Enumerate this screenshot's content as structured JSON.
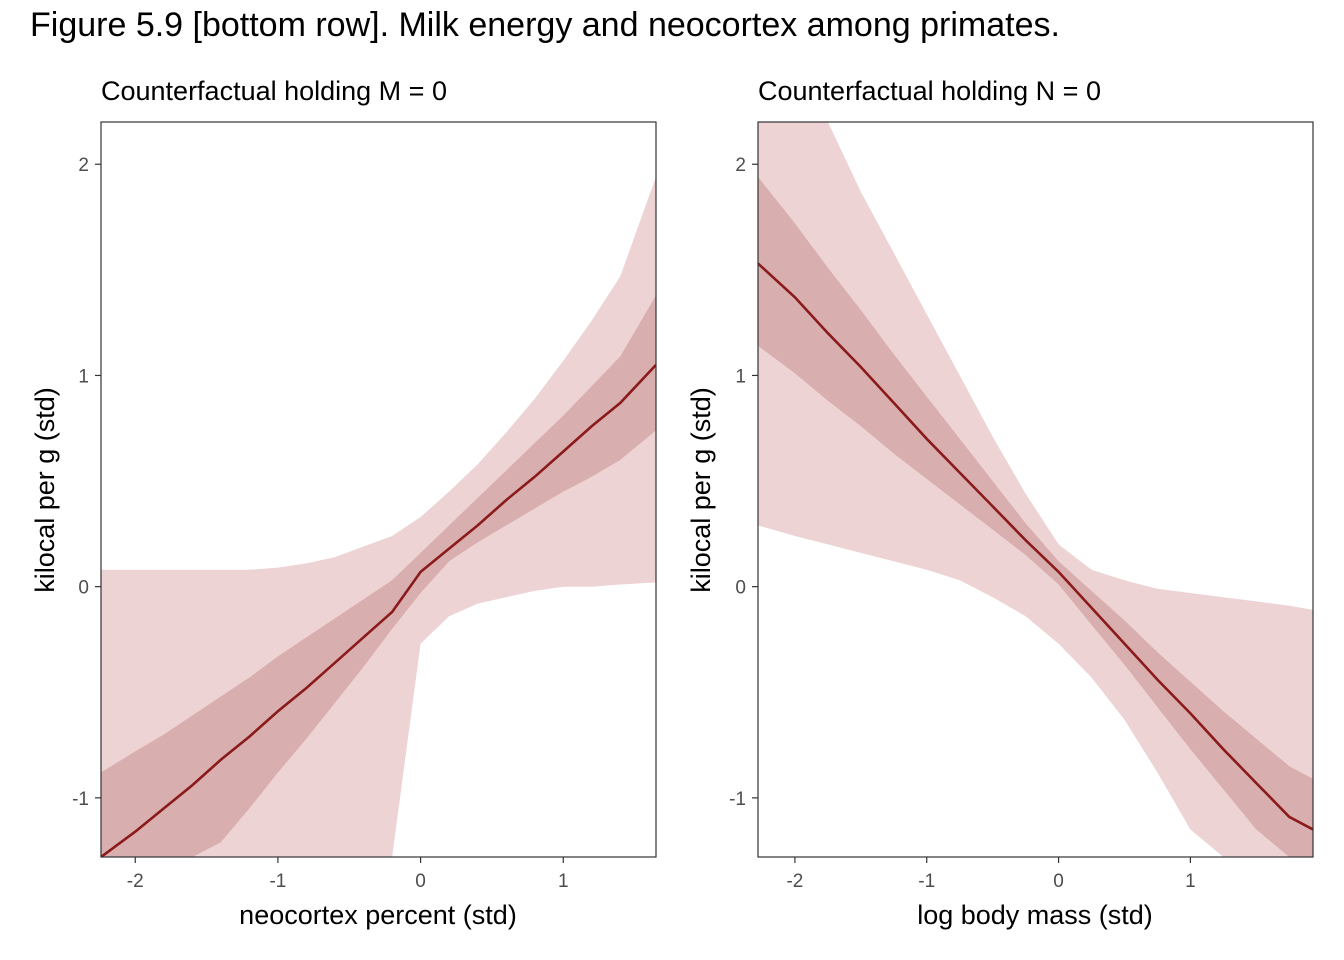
{
  "figure": {
    "title": "Figure 5.9 [bottom row]. Milk energy and neocortex among primates.",
    "colors": {
      "band_outer": "#edd3d4",
      "band_inner": "#d9aeae",
      "line": "#8b1a1a",
      "frame": "#333333",
      "tick_text": "#4d4d4d"
    }
  },
  "chart_data": [
    {
      "type": "line",
      "title": "Counterfactual holding M = 0",
      "xlabel": "neocortex percent (std)",
      "ylabel": "kilocal per g (std)",
      "xlim": [
        -2.24,
        1.65
      ],
      "ylim": [
        -1.28,
        2.2
      ],
      "xticks": [
        -2,
        -1,
        0,
        1
      ],
      "xtick_labels": [
        "-2",
        "-1",
        "0",
        "1"
      ],
      "yticks": [
        -1,
        0,
        1,
        2
      ],
      "ytick_labels": [
        "-1",
        "0",
        "1",
        "2"
      ],
      "grid": false,
      "series": [
        {
          "x": [
            -2.24,
            -2.0,
            -1.8,
            -1.6,
            -1.4,
            -1.2,
            -1.0,
            -0.8,
            -0.6,
            -0.4,
            -0.2,
            0.0,
            0.2,
            0.4,
            0.6,
            0.8,
            1.0,
            1.2,
            1.4,
            1.65
          ],
          "mean": [
            -1.28,
            -1.16,
            -1.05,
            -0.94,
            -0.82,
            -0.71,
            -0.59,
            -0.48,
            -0.36,
            -0.24,
            -0.12,
            0.07,
            0.18,
            0.29,
            0.41,
            0.52,
            0.64,
            0.76,
            0.87,
            1.05
          ],
          "inner_lower": [
            -1.28,
            -1.28,
            -1.28,
            -1.28,
            -1.21,
            -1.05,
            -0.88,
            -0.72,
            -0.55,
            -0.38,
            -0.2,
            -0.03,
            0.12,
            0.21,
            0.29,
            0.37,
            0.45,
            0.52,
            0.6,
            0.74
          ],
          "inner_upper": [
            -0.88,
            -0.78,
            -0.7,
            -0.61,
            -0.52,
            -0.43,
            -0.33,
            -0.24,
            -0.15,
            -0.06,
            0.03,
            0.16,
            0.29,
            0.42,
            0.55,
            0.68,
            0.81,
            0.95,
            1.09,
            1.38
          ],
          "outer_lower": [
            -1.28,
            -1.28,
            -1.28,
            -1.28,
            -1.28,
            -1.28,
            -1.28,
            -1.28,
            -1.28,
            -1.28,
            -1.28,
            -0.27,
            -0.14,
            -0.08,
            -0.05,
            -0.02,
            0.0,
            0.0,
            0.01,
            0.02
          ],
          "outer_upper": [
            0.08,
            0.08,
            0.08,
            0.08,
            0.08,
            0.08,
            0.09,
            0.11,
            0.14,
            0.19,
            0.24,
            0.33,
            0.45,
            0.58,
            0.73,
            0.89,
            1.07,
            1.26,
            1.47,
            1.94
          ]
        }
      ]
    },
    {
      "type": "line",
      "title": "Counterfactual holding N = 0",
      "xlabel": "log body mass (std)",
      "ylabel": "kilocal per g (std)",
      "xlim": [
        -2.28,
        1.93
      ],
      "ylim": [
        -1.28,
        2.2
      ],
      "xticks": [
        -2,
        -1,
        0,
        1
      ],
      "xtick_labels": [
        "-2",
        "-1",
        "0",
        "1"
      ],
      "yticks": [
        -1,
        0,
        1,
        2
      ],
      "ytick_labels": [
        "-1",
        "0",
        "1",
        "2"
      ],
      "grid": false,
      "series": [
        {
          "x": [
            -2.28,
            -2.0,
            -1.75,
            -1.5,
            -1.25,
            -1.0,
            -0.75,
            -0.5,
            -0.25,
            0.0,
            0.25,
            0.5,
            0.75,
            1.0,
            1.25,
            1.5,
            1.75,
            1.93
          ],
          "mean": [
            1.53,
            1.37,
            1.2,
            1.04,
            0.87,
            0.7,
            0.54,
            0.38,
            0.22,
            0.07,
            -0.1,
            -0.27,
            -0.44,
            -0.6,
            -0.77,
            -0.93,
            -1.09,
            -1.15
          ],
          "inner_lower": [
            1.14,
            1.01,
            0.88,
            0.76,
            0.63,
            0.51,
            0.39,
            0.27,
            0.15,
            0.01,
            -0.18,
            -0.37,
            -0.57,
            -0.77,
            -0.96,
            -1.15,
            -1.28,
            -1.28
          ],
          "inner_upper": [
            1.94,
            1.72,
            1.51,
            1.31,
            1.1,
            0.9,
            0.7,
            0.5,
            0.3,
            0.12,
            -0.02,
            -0.16,
            -0.31,
            -0.45,
            -0.59,
            -0.72,
            -0.85,
            -0.91
          ],
          "outer_lower": [
            0.29,
            0.24,
            0.2,
            0.16,
            0.12,
            0.08,
            0.03,
            -0.05,
            -0.14,
            -0.27,
            -0.43,
            -0.63,
            -0.88,
            -1.15,
            -1.28,
            -1.28,
            -1.28,
            -1.28
          ],
          "outer_upper": [
            2.2,
            2.2,
            2.2,
            1.87,
            1.58,
            1.29,
            1.0,
            0.71,
            0.44,
            0.2,
            0.08,
            0.03,
            -0.01,
            -0.03,
            -0.05,
            -0.07,
            -0.09,
            -0.11
          ]
        }
      ]
    }
  ]
}
